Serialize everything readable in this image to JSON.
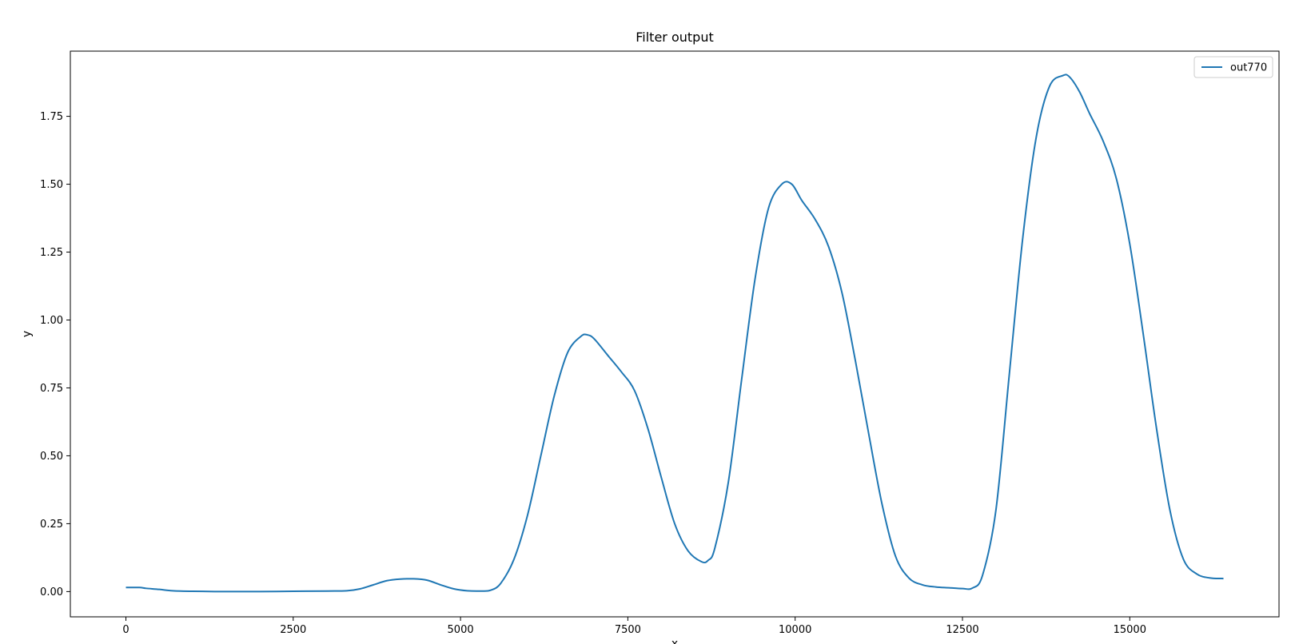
{
  "chart_data": {
    "type": "line",
    "title": "Filter output",
    "xlabel": "x",
    "ylabel": "y",
    "xlim": [
      -830,
      17230
    ],
    "ylim": [
      -0.093,
      1.99
    ],
    "xticks": [
      0,
      2500,
      5000,
      7500,
      10000,
      12500,
      15000
    ],
    "xtick_labels": [
      "0",
      "2500",
      "5000",
      "7500",
      "10000",
      "12500",
      "15000"
    ],
    "yticks": [
      0.0,
      0.25,
      0.5,
      0.75,
      1.0,
      1.25,
      1.5,
      1.75
    ],
    "ytick_labels": [
      "0.00",
      "0.25",
      "0.50",
      "0.75",
      "1.00",
      "1.25",
      "1.50",
      "1.75"
    ],
    "grid": false,
    "legend_position": "top-right",
    "series": [
      {
        "name": "out770",
        "color": "#1f77b4",
        "x": [
          0,
          200,
          300,
          500,
          700,
          1000,
          1500,
          2000,
          2500,
          3000,
          3300,
          3500,
          3700,
          3900,
          4100,
          4300,
          4500,
          4700,
          4900,
          5100,
          5300,
          5450,
          5600,
          5800,
          6000,
          6200,
          6400,
          6600,
          6800,
          6900,
          7000,
          7200,
          7400,
          7600,
          7800,
          8000,
          8200,
          8400,
          8600,
          8700,
          8800,
          9000,
          9200,
          9400,
          9600,
          9800,
          9950,
          10100,
          10300,
          10500,
          10700,
          10900,
          11100,
          11300,
          11500,
          11700,
          11900,
          12100,
          12300,
          12500,
          12650,
          12800,
          13000,
          13200,
          13400,
          13600,
          13800,
          14000,
          14100,
          14250,
          14400,
          14600,
          14800,
          15000,
          15200,
          15400,
          15600,
          15800,
          16000,
          16200,
          16400
        ],
        "y": [
          0.015,
          0.015,
          0.012,
          0.008,
          0.003,
          0.001,
          0.0,
          0.0,
          0.001,
          0.002,
          0.003,
          0.01,
          0.025,
          0.04,
          0.046,
          0.047,
          0.042,
          0.025,
          0.01,
          0.003,
          0.002,
          0.005,
          0.03,
          0.12,
          0.28,
          0.5,
          0.72,
          0.88,
          0.94,
          0.945,
          0.93,
          0.87,
          0.81,
          0.74,
          0.6,
          0.42,
          0.25,
          0.15,
          0.11,
          0.115,
          0.16,
          0.4,
          0.78,
          1.15,
          1.41,
          1.5,
          1.5,
          1.44,
          1.37,
          1.27,
          1.1,
          0.85,
          0.58,
          0.32,
          0.13,
          0.05,
          0.025,
          0.017,
          0.014,
          0.011,
          0.013,
          0.06,
          0.3,
          0.8,
          1.3,
          1.67,
          1.86,
          1.9,
          1.895,
          1.84,
          1.76,
          1.66,
          1.52,
          1.28,
          0.95,
          0.6,
          0.3,
          0.12,
          0.065,
          0.05,
          0.048
        ]
      }
    ]
  }
}
